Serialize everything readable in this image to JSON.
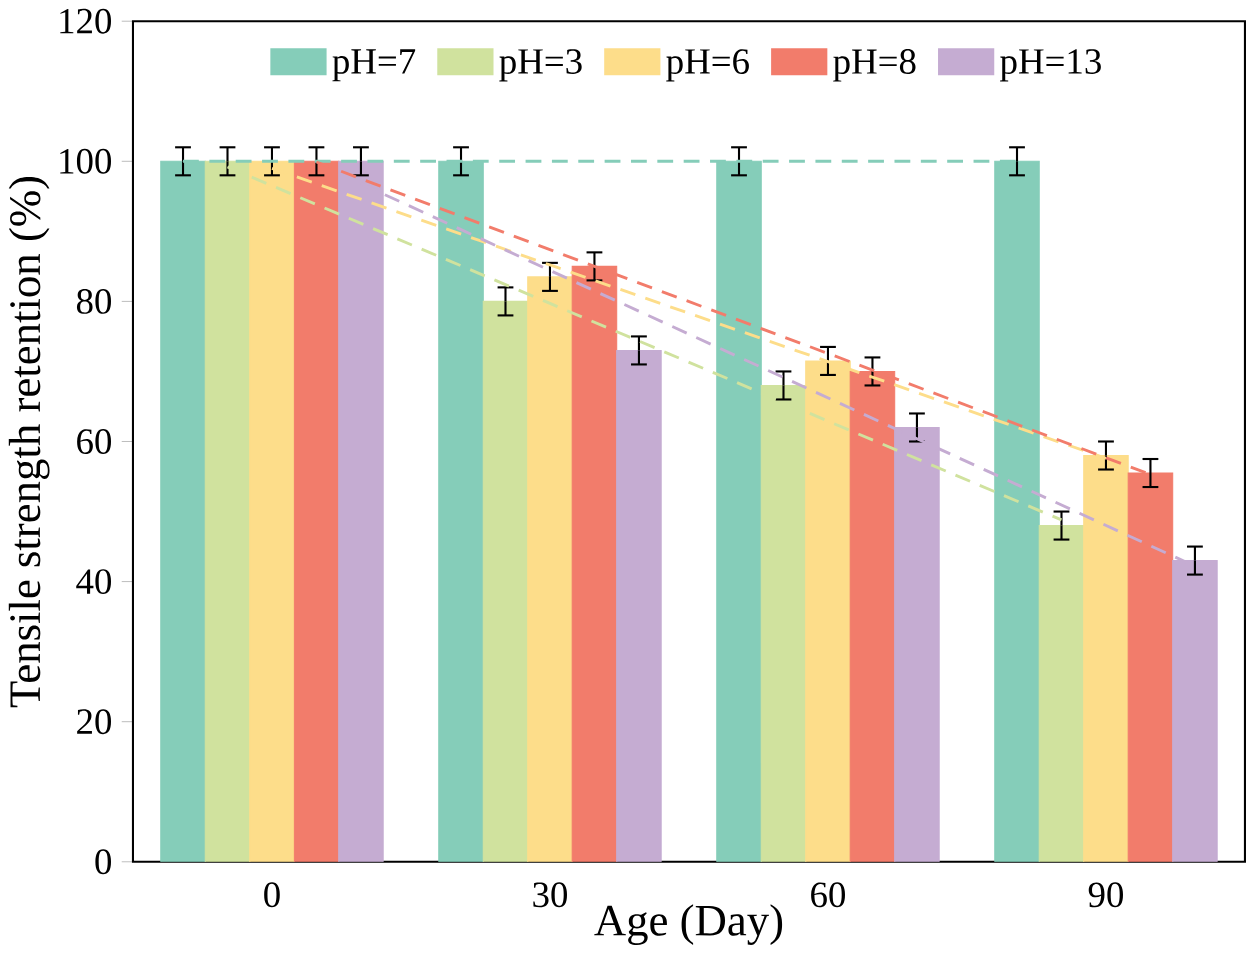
{
  "chart_data": {
    "type": "bar",
    "xlabel": "Age (Day)",
    "ylabel": "Tensile strength retention (%)",
    "categories": [
      "0",
      "30",
      "60",
      "90"
    ],
    "series": [
      {
        "name": "pH=7",
        "color": "#85cdb9",
        "values": [
          100,
          100,
          100,
          100
        ],
        "errors": [
          2,
          2,
          2,
          2
        ]
      },
      {
        "name": "pH=3",
        "color": "#d0e29e",
        "values": [
          100,
          80,
          68,
          48
        ],
        "errors": [
          2,
          2,
          2,
          2
        ]
      },
      {
        "name": "pH=6",
        "color": "#fddd8a",
        "values": [
          100,
          83.5,
          71.5,
          58
        ],
        "errors": [
          2,
          2,
          2,
          2
        ]
      },
      {
        "name": "pH=8",
        "color": "#f27c6b",
        "values": [
          100,
          85,
          70,
          55.5
        ],
        "errors": [
          2,
          2,
          2,
          2
        ]
      },
      {
        "name": "pH=13",
        "color": "#c5acd2",
        "values": [
          100,
          73,
          62,
          43
        ],
        "errors": [
          2,
          2,
          2,
          2
        ]
      },
      {
        "type": "line",
        "line_style": "dashed",
        "color": "#85cdb9",
        "x": [
          "0",
          "30",
          "60",
          "90"
        ],
        "values": [
          100,
          100,
          100,
          100
        ]
      },
      {
        "type": "line",
        "line_style": "dashed",
        "color": "#d0e29e",
        "x": [
          "0",
          "30",
          "60",
          "90"
        ],
        "values": [
          99.2,
          82.4,
          65.6,
          48.8
        ]
      },
      {
        "type": "line",
        "line_style": "dashed",
        "color": "#fddd8a",
        "x": [
          "0",
          "30",
          "60",
          "90"
        ],
        "values": [
          99,
          85.2,
          71.4,
          57.6
        ]
      },
      {
        "type": "line",
        "line_style": "dashed",
        "color": "#f27c6b",
        "x": [
          "0",
          "30",
          "60",
          "90"
        ],
        "values": [
          99.9,
          85,
          70.2,
          55.3
        ]
      },
      {
        "type": "line",
        "line_style": "dashed",
        "color": "#c5acd2",
        "x": [
          "0",
          "30",
          "60",
          "90"
        ],
        "values": [
          96.8,
          78.6,
          60.4,
          42.2
        ]
      }
    ],
    "ylim": [
      0,
      120
    ],
    "yticks": [
      0,
      20,
      40,
      60,
      80,
      100,
      120
    ],
    "grid": false,
    "legend": "top"
  }
}
